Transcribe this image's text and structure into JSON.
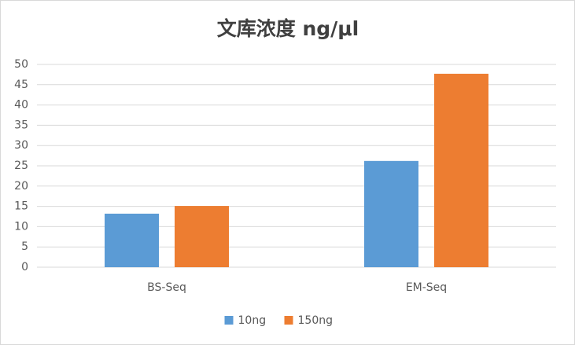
{
  "chart_data": {
    "type": "bar",
    "title": "文库浓度 ng/μl",
    "categories": [
      "BS-Seq",
      "EM-Seq"
    ],
    "series": [
      {
        "name": "10ng",
        "color": "#5b9bd5",
        "values": [
          13.2,
          26.2
        ]
      },
      {
        "name": "150ng",
        "color": "#ed7d31",
        "values": [
          15.1,
          47.7
        ]
      }
    ],
    "ylim": [
      0,
      50
    ],
    "yticks": [
      0,
      5,
      10,
      15,
      20,
      25,
      30,
      35,
      40,
      45,
      50
    ],
    "grid": true,
    "legend": "bottom"
  }
}
